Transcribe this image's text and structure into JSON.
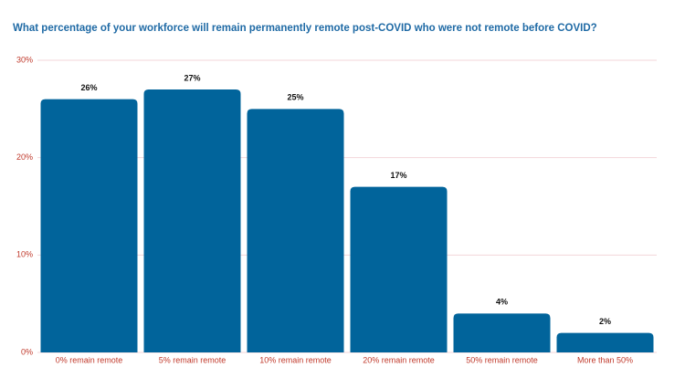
{
  "chart_data": {
    "type": "bar",
    "title": "What percentage of your workforce will remain permanently remote post-COVID who were not remote before COVID?",
    "categories": [
      "0% remain remote",
      "5% remain remote",
      "10% remain remote",
      "20% remain remote",
      "50% remain remote",
      "More than 50%"
    ],
    "values": [
      26,
      27,
      25,
      17,
      4,
      2
    ],
    "value_labels": [
      "26%",
      "27%",
      "25%",
      "17%",
      "4%",
      "2%"
    ],
    "color": "#01649b",
    "ylim": [
      0,
      30
    ],
    "yticks": [
      {
        "value": 0,
        "label": "0%"
      },
      {
        "value": 10,
        "label": "10%"
      },
      {
        "value": 20,
        "label": "20%"
      },
      {
        "value": 30,
        "label": "30%"
      }
    ],
    "grid": true
  }
}
